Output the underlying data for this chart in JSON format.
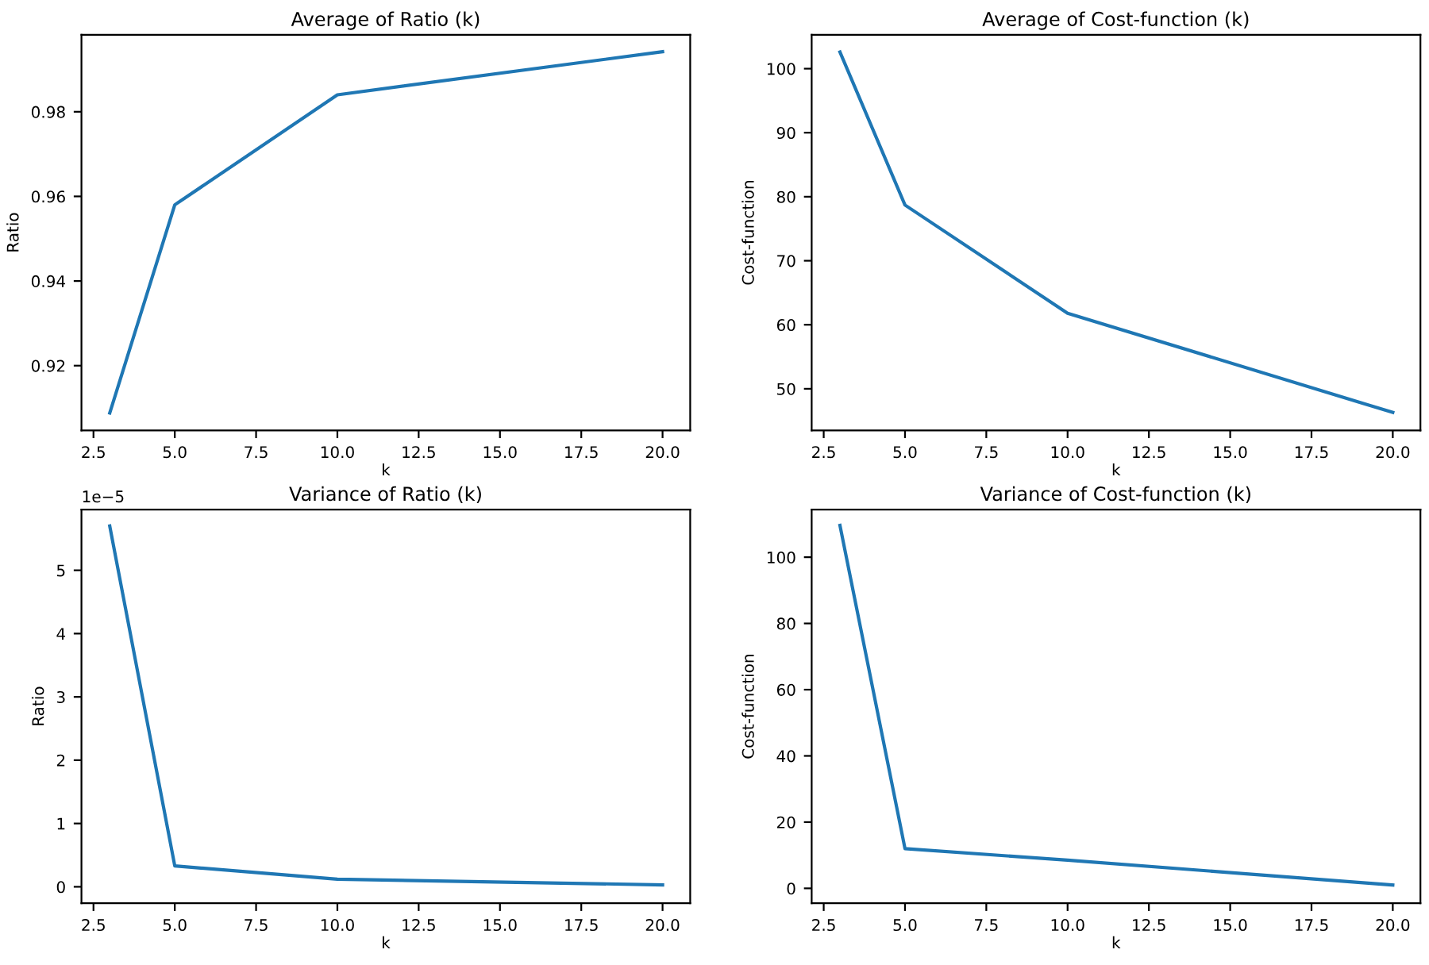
{
  "chart_data": [
    {
      "type": "line",
      "title": "Average of Ratio (k)",
      "xlabel": "k",
      "ylabel": "Ratio",
      "x": [
        3,
        5,
        10,
        20
      ],
      "series": [
        {
          "color": "#1f77b4",
          "values": [
            0.9088,
            0.958,
            0.984,
            0.9942
          ]
        }
      ],
      "xlim": [
        2.13,
        20.85
      ],
      "xticks": [
        {
          "value": 2.5,
          "label": "2.5"
        },
        {
          "value": 5,
          "label": "5.0"
        },
        {
          "value": 7.5,
          "label": "7.5"
        },
        {
          "value": 10,
          "label": "10.0"
        },
        {
          "value": 12.5,
          "label": "12.5"
        },
        {
          "value": 15,
          "label": "15.0"
        },
        {
          "value": 17.5,
          "label": "17.5"
        },
        {
          "value": 20,
          "label": "20.0"
        }
      ],
      "ylim": [
        0.9047,
        0.9982
      ],
      "yticks": [
        {
          "value": 0.92,
          "label": "0.92"
        },
        {
          "value": 0.94,
          "label": "0.94"
        },
        {
          "value": 0.96,
          "label": "0.96"
        },
        {
          "value": 0.98,
          "label": "0.98"
        }
      ]
    },
    {
      "type": "line",
      "title": "Average of Cost-function (k)",
      "xlabel": "k",
      "ylabel": "Cost-function",
      "x": [
        3,
        5,
        10,
        20
      ],
      "series": [
        {
          "color": "#1f77b4",
          "values": [
            102.6,
            78.7,
            61.8,
            46.3
          ]
        }
      ],
      "xlim": [
        2.13,
        20.85
      ],
      "xticks": [
        {
          "value": 2.5,
          "label": "2.5"
        },
        {
          "value": 5,
          "label": "5.0"
        },
        {
          "value": 7.5,
          "label": "7.5"
        },
        {
          "value": 10,
          "label": "10.0"
        },
        {
          "value": 12.5,
          "label": "12.5"
        },
        {
          "value": 15,
          "label": "15.0"
        },
        {
          "value": 17.5,
          "label": "17.5"
        },
        {
          "value": 20,
          "label": "20.0"
        }
      ],
      "ylim": [
        43.5,
        105.3
      ],
      "yticks": [
        50,
        60,
        70,
        80,
        90,
        100
      ]
    },
    {
      "type": "line",
      "title": "Variance of Ratio (k)",
      "xlabel": "k",
      "ylabel": "Ratio",
      "x": [
        3,
        5,
        10,
        20
      ],
      "series": [
        {
          "color": "#1f77b4",
          "values": [
            5.7,
            0.33,
            0.12,
            0.03
          ]
        }
      ],
      "annotations": [
        "1e−5"
      ],
      "xlim": [
        2.13,
        20.85
      ],
      "xticks": [
        {
          "value": 2.5,
          "label": "2.5"
        },
        {
          "value": 5,
          "label": "5.0"
        },
        {
          "value": 7.5,
          "label": "7.5"
        },
        {
          "value": 10,
          "label": "10.0"
        },
        {
          "value": 12.5,
          "label": "12.5"
        },
        {
          "value": 15,
          "label": "15.0"
        },
        {
          "value": 17.5,
          "label": "17.5"
        },
        {
          "value": 20,
          "label": "20.0"
        }
      ],
      "ylim": [
        -0.26,
        5.96
      ],
      "yticks": [
        0,
        1,
        2,
        3,
        4,
        5
      ]
    },
    {
      "type": "line",
      "title": "Variance of Cost-function (k)",
      "xlabel": "k",
      "ylabel": "Cost-function",
      "x": [
        3,
        5,
        10,
        20
      ],
      "series": [
        {
          "color": "#1f77b4",
          "values": [
            109.6,
            12,
            8.5,
            1
          ]
        }
      ],
      "xlim": [
        2.13,
        20.85
      ],
      "xticks": [
        {
          "value": 2.5,
          "label": "2.5"
        },
        {
          "value": 5,
          "label": "5.0"
        },
        {
          "value": 7.5,
          "label": "7.5"
        },
        {
          "value": 10,
          "label": "10.0"
        },
        {
          "value": 12.5,
          "label": "12.5"
        },
        {
          "value": 15,
          "label": "15.0"
        },
        {
          "value": 17.5,
          "label": "17.5"
        },
        {
          "value": 20,
          "label": "20.0"
        }
      ],
      "ylim": [
        -4.5,
        114.4
      ],
      "yticks": [
        0,
        20,
        40,
        60,
        80,
        100
      ]
    }
  ]
}
